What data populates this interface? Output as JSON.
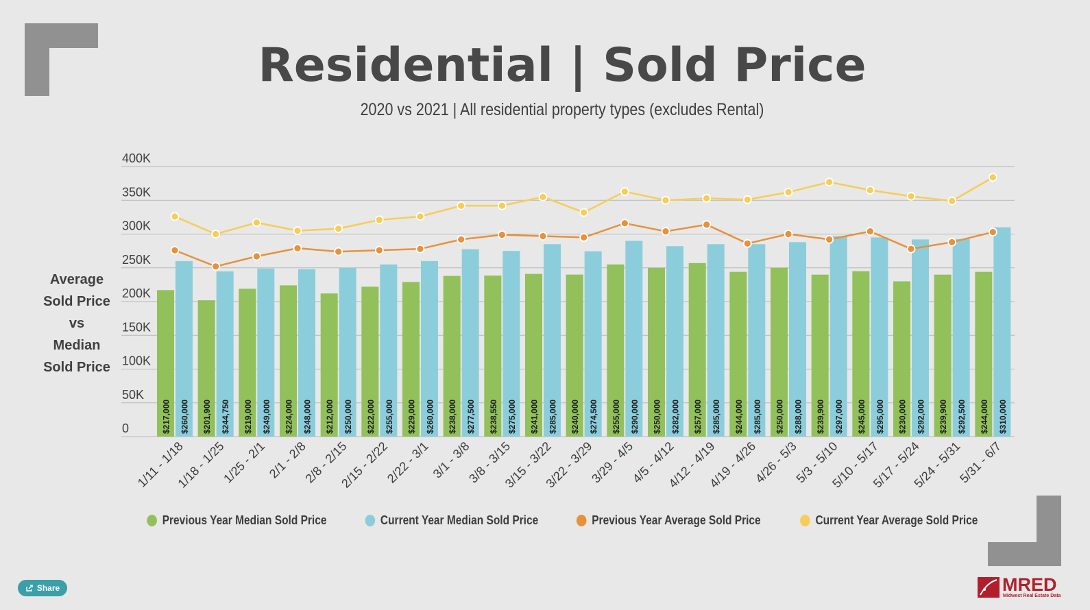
{
  "header": {
    "title": "Residential | Sold Price",
    "subtitle": "2020 vs 2021 | All residential property types (excludes Rental)"
  },
  "y_axis_label": [
    "Average",
    "Sold Price",
    "vs",
    "Median",
    "Sold Price"
  ],
  "share": {
    "label": "Share",
    "icon": "share-icon"
  },
  "logo": {
    "text": "MRED",
    "subtext": "Midwest Real Estate Data"
  },
  "colors": {
    "prev_median": "#92c05a",
    "curr_median": "#8ccddc",
    "prev_avg": "#e8913b",
    "curr_avg": "#f7cd57",
    "corner": "#919191",
    "brand": "#b21f2c"
  },
  "chart_data": {
    "type": "bar",
    "title": "Residential | Sold Price",
    "subtitle": "2020 vs 2021 | All residential property types (excludes Rental)",
    "ylabel": "Average Sold Price vs Median Sold Price",
    "ylim": [
      0,
      400000
    ],
    "yticks": [
      {
        "value": 0,
        "label": "0"
      },
      {
        "value": 50000,
        "label": "50K"
      },
      {
        "value": 100000,
        "label": "100K"
      },
      {
        "value": 150000,
        "label": "150K"
      },
      {
        "value": 200000,
        "label": "200K"
      },
      {
        "value": 250000,
        "label": "250K"
      },
      {
        "value": 300000,
        "label": "300K"
      },
      {
        "value": 350000,
        "label": "350K"
      },
      {
        "value": 400000,
        "label": "400K"
      }
    ],
    "grid": true,
    "legend_position": "bottom",
    "categories": [
      "1/11 - 1/18",
      "1/18 - 1/25",
      "1/25 - 2/1",
      "2/1 - 2/8",
      "2/8 - 2/15",
      "2/15 - 2/22",
      "2/22 - 3/1",
      "3/1 - 3/8",
      "3/8 - 3/15",
      "3/15 - 3/22",
      "3/22 - 3/29",
      "3/29 - 4/5",
      "4/5 - 4/12",
      "4/12 - 4/19",
      "4/19 - 4/26",
      "4/26 - 5/3",
      "5/3 - 5/10",
      "5/10 - 5/17",
      "5/17 - 5/24",
      "5/24 - 5/31",
      "5/31 - 6/7"
    ],
    "series": [
      {
        "name": "Previous Year Median Sold Price",
        "kind": "bar",
        "color": "#92c05a",
        "values": [
          217000,
          201900,
          219000,
          224000,
          212000,
          222000,
          229000,
          238000,
          238550,
          241000,
          240000,
          255000,
          250000,
          257000,
          244000,
          250000,
          239900,
          245000,
          230000,
          239900,
          244000
        ],
        "labels": [
          "$217,000",
          "$201,900",
          "$219,000",
          "$224,000",
          "$212,000",
          "$222,000",
          "$229,000",
          "$238,000",
          "$238,550",
          "$241,000",
          "$240,000",
          "$255,000",
          "$250,000",
          "$257,000",
          "$244,000",
          "$250,000",
          "$239,900",
          "$245,000",
          "$230,000",
          "$239,900",
          "$244,000"
        ]
      },
      {
        "name": "Current Year Median Sold Price",
        "kind": "bar",
        "color": "#8ccddc",
        "values": [
          260000,
          244750,
          249000,
          248000,
          250000,
          255000,
          260000,
          277500,
          275000,
          285000,
          274500,
          290000,
          282000,
          285000,
          285000,
          288000,
          297000,
          295000,
          292000,
          292500,
          310000
        ],
        "labels": [
          "$260,000",
          "$244,750",
          "$249,000",
          "$248,000",
          "$250,000",
          "$255,000",
          "$260,000",
          "$277,500",
          "$275,000",
          "$285,000",
          "$274,500",
          "$290,000",
          "$282,000",
          "$285,000",
          "$285,000",
          "$288,000",
          "$297,000",
          "$295,000",
          "$292,000",
          "$292,500",
          "$310,000"
        ]
      },
      {
        "name": "Previous Year Average Sold Price",
        "kind": "line",
        "color": "#e8913b",
        "values": [
          276000,
          252000,
          267000,
          279000,
          274000,
          276000,
          278000,
          292000,
          299000,
          297000,
          295000,
          316000,
          304000,
          314000,
          286000,
          300000,
          292000,
          304000,
          278000,
          288000,
          303000
        ]
      },
      {
        "name": "Current Year Average Sold Price",
        "kind": "line",
        "color": "#f7cd57",
        "values": [
          326000,
          300000,
          317000,
          305000,
          308000,
          321000,
          326000,
          342000,
          342000,
          355000,
          332000,
          363000,
          350000,
          353000,
          351000,
          362000,
          377000,
          365000,
          356000,
          349000,
          384000
        ]
      }
    ]
  }
}
